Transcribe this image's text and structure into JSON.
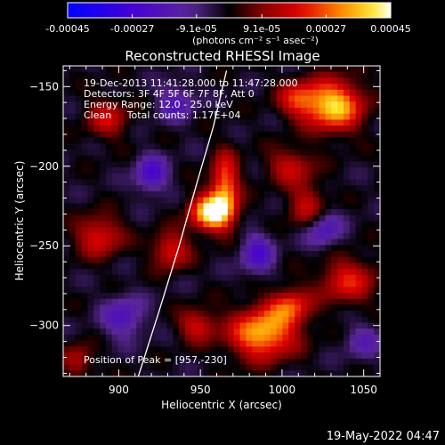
{
  "chart_data": {
    "type": "heatmap",
    "title": "Reconstructed RHESSI Image",
    "xlabel": "Heliocentric X (arcsec)",
    "ylabel": "Heliocentric Y (arcsec)",
    "xlim": [
      866,
      1060
    ],
    "ylim": [
      -332,
      -137
    ],
    "x_ticks": [
      900,
      950,
      1000,
      1050
    ],
    "y_ticks": [
      -150,
      -200,
      -250,
      -300
    ],
    "colorbar": {
      "range": [
        -0.00045,
        0.00045
      ],
      "tick_values": [
        -0.00045,
        -0.00027,
        -9.1e-05,
        9.1e-05,
        0.00027,
        0.00045
      ],
      "tick_labels": [
        "-0.00045",
        "-0.00027",
        "-9.1e-05",
        "9.1e-05",
        "0.00027",
        "0.00045"
      ],
      "unit_label": "(photons cm⁻² s⁻¹ asec⁻²)"
    },
    "annotations": {
      "time_range": "19-Dec-2013 11:41:28.000 to 11:47:28.000",
      "detectors": "Detectors: 3F 4F 5F 6F 7F 8F, Att 0",
      "energy_range": "Energy Range: 12.0 - 25.0 keV",
      "method_counts": "Clean     Total counts: 1.17E+04",
      "peak": "Position of Peak = [957,-230]"
    },
    "limb_curve": [
      [
        912,
        -332
      ],
      [
        925,
        -290
      ],
      [
        937,
        -250
      ],
      [
        948,
        -210
      ],
      [
        958,
        -175
      ],
      [
        966,
        -140
      ]
    ],
    "intensity_blobs": [
      {
        "x": 957,
        "y": -229,
        "sx": 9,
        "sy": 8,
        "amp": 1.15
      },
      {
        "x": 965,
        "y": -212,
        "sx": 6,
        "sy": 14,
        "amp": 0.75
      },
      {
        "x": 1032,
        "y": -162,
        "sx": 12,
        "sy": 11,
        "amp": 1.0
      },
      {
        "x": 1010,
        "y": -158,
        "sx": 9,
        "sy": 8,
        "amp": 0.55
      },
      {
        "x": 1005,
        "y": -200,
        "sx": 10,
        "sy": 8,
        "amp": 0.45
      },
      {
        "x": 988,
        "y": -305,
        "sx": 14,
        "sy": 11,
        "amp": 0.95
      },
      {
        "x": 1005,
        "y": -288,
        "sx": 9,
        "sy": 8,
        "amp": 0.6
      },
      {
        "x": 1040,
        "y": -272,
        "sx": 12,
        "sy": 10,
        "amp": 0.55
      },
      {
        "x": 932,
        "y": -253,
        "sx": 8,
        "sy": 8,
        "amp": 0.55
      },
      {
        "x": 888,
        "y": -244,
        "sx": 10,
        "sy": 9,
        "amp": 0.55
      },
      {
        "x": 893,
        "y": -170,
        "sx": 9,
        "sy": 9,
        "amp": 0.45
      },
      {
        "x": 948,
        "y": -300,
        "sx": 8,
        "sy": 7,
        "amp": 0.5
      },
      {
        "x": 1015,
        "y": -225,
        "sx": 8,
        "sy": 10,
        "amp": 0.45
      },
      {
        "x": 875,
        "y": -322,
        "sx": 7,
        "sy": 7,
        "amp": 0.4
      },
      {
        "x": 920,
        "y": -205,
        "sx": 7,
        "sy": 8,
        "amp": -0.55
      },
      {
        "x": 903,
        "y": -295,
        "sx": 9,
        "sy": 9,
        "amp": -0.45
      },
      {
        "x": 1025,
        "y": -240,
        "sx": 8,
        "sy": 8,
        "amp": -0.45
      },
      {
        "x": 985,
        "y": -255,
        "sx": 7,
        "sy": 9,
        "amp": -0.5
      },
      {
        "x": 935,
        "y": -160,
        "sx": 8,
        "sy": 8,
        "amp": -0.4
      },
      {
        "x": 1050,
        "y": -310,
        "sx": 8,
        "sy": 8,
        "amp": -0.3
      }
    ]
  },
  "footer_timestamp": "19-May-2022 04:47"
}
